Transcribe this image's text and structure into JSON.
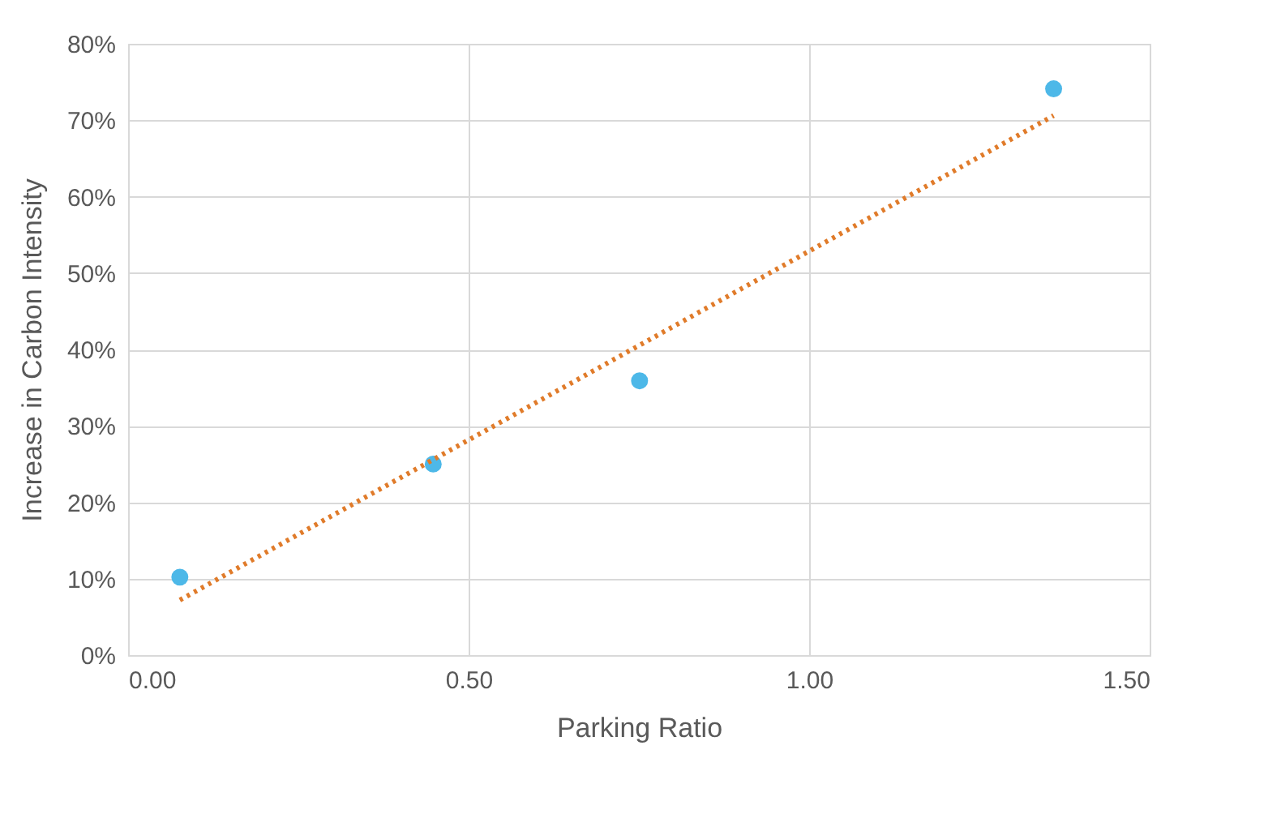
{
  "chart_data": {
    "type": "scatter",
    "xlabel": "Parking Ratio",
    "ylabel": "Increase in Carbon Intensity",
    "xlim": [
      0,
      1.5
    ],
    "xticks": [
      {
        "value": 0,
        "label": "0.00"
      },
      {
        "value": 0.5,
        "label": "0.50"
      },
      {
        "value": 1,
        "label": "1.00"
      },
      {
        "value": 1.5,
        "label": "1.50"
      }
    ],
    "ylim": [
      0,
      80
    ],
    "yticks": [
      {
        "value": 0,
        "label": "0%"
      },
      {
        "value": 10,
        "label": "10%"
      },
      {
        "value": 20,
        "label": "20%"
      },
      {
        "value": 30,
        "label": "30%"
      },
      {
        "value": 40,
        "label": "40%"
      },
      {
        "value": 50,
        "label": "50%"
      },
      {
        "value": 60,
        "label": "60%"
      },
      {
        "value": 70,
        "label": "70%"
      },
      {
        "value": 80,
        "label": "80%"
      }
    ],
    "grid": true,
    "marker": "circle",
    "series": [
      {
        "color": "#4db8e8",
        "x": [
          0.076,
          0.448,
          0.751,
          1.359
        ],
        "values": [
          10.2,
          25.0,
          35.9,
          74.1
        ]
      },
      {
        "type": "line",
        "color": "#e07b2a",
        "line_style": "dotted",
        "marker": "none",
        "x": [
          0.076,
          1.359
        ],
        "values": [
          7.2,
          70.6
        ]
      }
    ]
  }
}
